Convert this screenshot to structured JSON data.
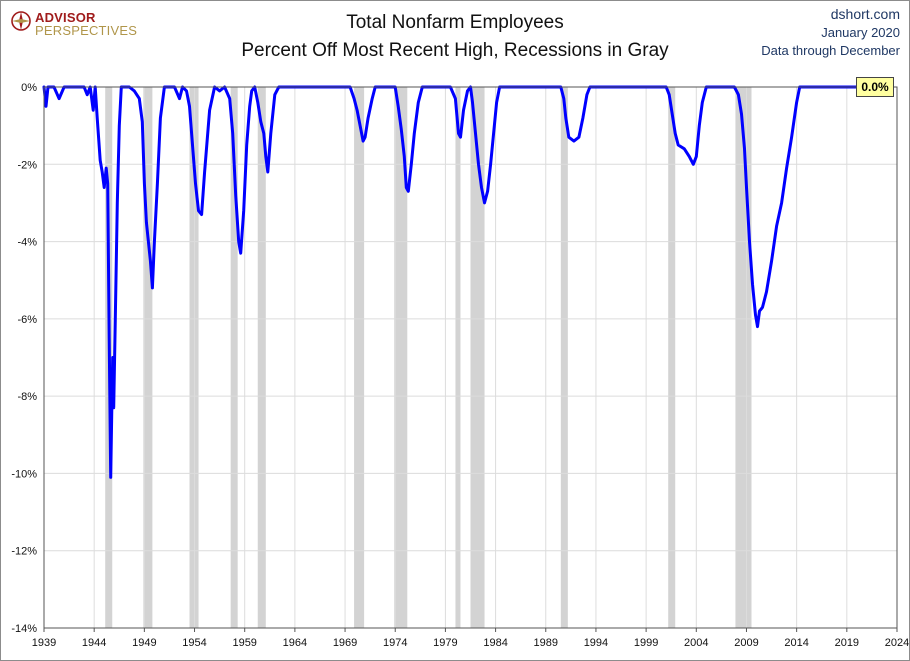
{
  "header": {
    "title_line1": "Total Nonfarm Employees",
    "title_line2": "Percent Off Most Recent High, Recessions in Gray",
    "credit_site": "dshort.com",
    "credit_date": "January 2020",
    "credit_note": "Data through December",
    "logo_top": "ADVISOR",
    "logo_bottom": "PERSPECTIVES"
  },
  "colors": {
    "series": "#0000ff",
    "recession": "#d3d3d3",
    "grid": "#dcdcdc",
    "badge": "#ffffa0"
  },
  "latest_label": "0.0%",
  "chart_data": {
    "type": "line",
    "title": "Total Nonfarm Employees — Percent Off Most Recent High, Recessions in Gray",
    "xlabel": "",
    "ylabel": "",
    "xlim": [
      1939,
      2024
    ],
    "ylim": [
      -14,
      0
    ],
    "grid": true,
    "legend": "none",
    "y_ticks": [
      "0%",
      "-2%",
      "-4%",
      "-6%",
      "-8%",
      "-10%",
      "-12%",
      "-14%"
    ],
    "y_tick_values": [
      0,
      -2,
      -4,
      -6,
      -8,
      -10,
      -12,
      -14
    ],
    "x_ticks": [
      "1939",
      "1944",
      "1949",
      "1954",
      "1959",
      "1964",
      "1969",
      "1974",
      "1979",
      "1984",
      "1989",
      "1994",
      "1999",
      "2004",
      "2009",
      "2014",
      "2019",
      "2024"
    ],
    "x_tick_values": [
      1939,
      1944,
      1949,
      1954,
      1959,
      1964,
      1969,
      1974,
      1979,
      1984,
      1989,
      1994,
      1999,
      2004,
      2009,
      2014,
      2019,
      2024
    ],
    "recessions": [
      [
        1945.1,
        1945.8
      ],
      [
        1948.9,
        1949.8
      ],
      [
        1953.5,
        1954.4
      ],
      [
        1957.6,
        1958.3
      ],
      [
        1960.3,
        1961.1
      ],
      [
        1969.9,
        1970.9
      ],
      [
        1973.9,
        1975.2
      ],
      [
        1980.0,
        1980.5
      ],
      [
        1981.5,
        1982.9
      ],
      [
        1990.5,
        1991.2
      ],
      [
        2001.2,
        2001.9
      ],
      [
        2007.9,
        2009.5
      ]
    ],
    "series": [
      {
        "values": [
          [
            1939.0,
            0
          ],
          [
            1939.2,
            -0.5
          ],
          [
            1939.4,
            0
          ],
          [
            1940.0,
            0
          ],
          [
            1940.5,
            -0.3
          ],
          [
            1941.0,
            0
          ],
          [
            1943.0,
            0
          ],
          [
            1943.3,
            -0.2
          ],
          [
            1943.6,
            0
          ],
          [
            1943.9,
            -0.6
          ],
          [
            1944.1,
            0
          ],
          [
            1944.3,
            -0.8
          ],
          [
            1944.6,
            -1.9
          ],
          [
            1944.8,
            -2.2
          ],
          [
            1945.0,
            -2.6
          ],
          [
            1945.2,
            -2.1
          ],
          [
            1945.35,
            -2.5
          ],
          [
            1945.5,
            -6.5
          ],
          [
            1945.65,
            -10.1
          ],
          [
            1945.75,
            -8.5
          ],
          [
            1945.85,
            -7.0
          ],
          [
            1945.95,
            -8.3
          ],
          [
            1946.1,
            -6.0
          ],
          [
            1946.3,
            -3.0
          ],
          [
            1946.5,
            -1.0
          ],
          [
            1946.7,
            0
          ],
          [
            1947.5,
            0
          ],
          [
            1948.0,
            -0.1
          ],
          [
            1948.5,
            -0.3
          ],
          [
            1948.8,
            -0.9
          ],
          [
            1949.0,
            -2.5
          ],
          [
            1949.2,
            -3.5
          ],
          [
            1949.4,
            -4.0
          ],
          [
            1949.6,
            -4.5
          ],
          [
            1949.8,
            -5.2
          ],
          [
            1950.0,
            -4.0
          ],
          [
            1950.3,
            -2.5
          ],
          [
            1950.6,
            -0.8
          ],
          [
            1951.0,
            0
          ],
          [
            1952.0,
            0
          ],
          [
            1952.5,
            -0.3
          ],
          [
            1952.8,
            0
          ],
          [
            1953.2,
            -0.1
          ],
          [
            1953.5,
            -0.5
          ],
          [
            1953.8,
            -1.5
          ],
          [
            1954.1,
            -2.5
          ],
          [
            1954.4,
            -3.2
          ],
          [
            1954.7,
            -3.3
          ],
          [
            1955.0,
            -2.2
          ],
          [
            1955.5,
            -0.6
          ],
          [
            1956.0,
            0
          ],
          [
            1956.5,
            -0.1
          ],
          [
            1957.0,
            0
          ],
          [
            1957.5,
            -0.3
          ],
          [
            1957.8,
            -1.2
          ],
          [
            1958.1,
            -2.8
          ],
          [
            1958.4,
            -4.0
          ],
          [
            1958.6,
            -4.3
          ],
          [
            1958.9,
            -3.2
          ],
          [
            1959.2,
            -1.5
          ],
          [
            1959.5,
            -0.5
          ],
          [
            1959.7,
            -0.1
          ],
          [
            1960.0,
            0
          ],
          [
            1960.3,
            -0.4
          ],
          [
            1960.6,
            -0.9
          ],
          [
            1960.9,
            -1.2
          ],
          [
            1961.1,
            -1.8
          ],
          [
            1961.3,
            -2.2
          ],
          [
            1961.6,
            -1.2
          ],
          [
            1962.0,
            -0.2
          ],
          [
            1962.4,
            0
          ],
          [
            1965.0,
            0
          ],
          [
            1969.5,
            0
          ],
          [
            1969.9,
            -0.3
          ],
          [
            1970.2,
            -0.6
          ],
          [
            1970.5,
            -1.0
          ],
          [
            1970.8,
            -1.4
          ],
          [
            1971.0,
            -1.3
          ],
          [
            1971.3,
            -0.8
          ],
          [
            1971.7,
            -0.3
          ],
          [
            1972.0,
            0
          ],
          [
            1974.0,
            0
          ],
          [
            1974.3,
            -0.5
          ],
          [
            1974.6,
            -1.1
          ],
          [
            1974.9,
            -1.8
          ],
          [
            1975.1,
            -2.6
          ],
          [
            1975.3,
            -2.7
          ],
          [
            1975.6,
            -2.0
          ],
          [
            1975.9,
            -1.2
          ],
          [
            1976.3,
            -0.4
          ],
          [
            1976.7,
            0
          ],
          [
            1979.5,
            0
          ],
          [
            1980.0,
            -0.3
          ],
          [
            1980.3,
            -1.2
          ],
          [
            1980.5,
            -1.3
          ],
          [
            1980.8,
            -0.6
          ],
          [
            1981.2,
            -0.1
          ],
          [
            1981.5,
            0
          ],
          [
            1981.7,
            -0.4
          ],
          [
            1982.0,
            -1.2
          ],
          [
            1982.3,
            -2.0
          ],
          [
            1982.6,
            -2.6
          ],
          [
            1982.9,
            -3.0
          ],
          [
            1983.2,
            -2.7
          ],
          [
            1983.5,
            -2.0
          ],
          [
            1983.8,
            -1.2
          ],
          [
            1984.1,
            -0.4
          ],
          [
            1984.4,
            0
          ],
          [
            1990.5,
            0
          ],
          [
            1990.8,
            -0.3
          ],
          [
            1991.0,
            -0.8
          ],
          [
            1991.3,
            -1.3
          ],
          [
            1991.8,
            -1.4
          ],
          [
            1992.3,
            -1.3
          ],
          [
            1992.7,
            -0.8
          ],
          [
            1993.1,
            -0.2
          ],
          [
            1993.4,
            0
          ],
          [
            2001.0,
            0
          ],
          [
            2001.3,
            -0.2
          ],
          [
            2001.6,
            -0.7
          ],
          [
            2001.9,
            -1.2
          ],
          [
            2002.2,
            -1.5
          ],
          [
            2002.8,
            -1.6
          ],
          [
            2003.3,
            -1.8
          ],
          [
            2003.7,
            -2.0
          ],
          [
            2004.0,
            -1.8
          ],
          [
            2004.3,
            -1.0
          ],
          [
            2004.6,
            -0.4
          ],
          [
            2005.0,
            0
          ],
          [
            2007.8,
            0
          ],
          [
            2008.2,
            -0.2
          ],
          [
            2008.5,
            -0.7
          ],
          [
            2008.8,
            -1.6
          ],
          [
            2009.0,
            -2.6
          ],
          [
            2009.3,
            -4.0
          ],
          [
            2009.6,
            -5.1
          ],
          [
            2009.9,
            -5.9
          ],
          [
            2010.1,
            -6.2
          ],
          [
            2010.3,
            -5.8
          ],
          [
            2010.6,
            -5.7
          ],
          [
            2011.0,
            -5.3
          ],
          [
            2011.5,
            -4.5
          ],
          [
            2012.0,
            -3.6
          ],
          [
            2012.5,
            -3.0
          ],
          [
            2013.0,
            -2.1
          ],
          [
            2013.5,
            -1.3
          ],
          [
            2014.0,
            -0.4
          ],
          [
            2014.3,
            0
          ],
          [
            2019.9,
            0
          ]
        ]
      }
    ]
  }
}
